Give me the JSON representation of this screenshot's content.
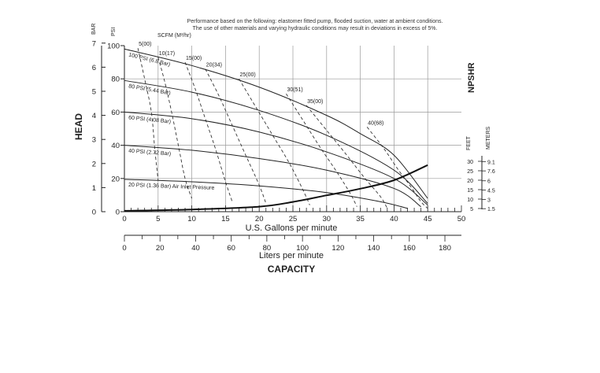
{
  "chart_data": {
    "type": "line",
    "note_lines": [
      "Performance based on the following: elastomer fitted pump, flooded suction, water at ambient conditions.",
      "The use of other materials and varying hydraulic conditions may result in deviations in excess of 5%."
    ],
    "xlabel": "U.S. Gallons per minute",
    "x2label": "Liters per minute",
    "capacity_label": "CAPACITY",
    "head_label": "HEAD",
    "npshr_label": "NPSHR",
    "bar_label": "BAR",
    "psi_label": "PSI",
    "feet_label": "FEET",
    "meters_label": "METERS",
    "scfm_label": "SCFM (M³/hr)",
    "xlim": [
      0,
      50
    ],
    "ylim_psi": [
      0,
      100
    ],
    "x_ticks": [
      "0",
      "5",
      "10",
      "15",
      "20",
      "25",
      "30",
      "35",
      "40",
      "45",
      "50"
    ],
    "x2_ticks": [
      {
        "gpm": 0,
        "label": "0"
      },
      {
        "gpm": 5.28,
        "label": "20"
      },
      {
        "gpm": 10.57,
        "label": "40"
      },
      {
        "gpm": 15.85,
        "label": "60"
      },
      {
        "gpm": 21.13,
        "label": "80"
      },
      {
        "gpm": 26.42,
        "label": "100"
      },
      {
        "gpm": 31.7,
        "label": "120"
      },
      {
        "gpm": 36.98,
        "label": "140"
      },
      {
        "gpm": 42.27,
        "label": "160"
      },
      {
        "gpm": 47.55,
        "label": "180"
      }
    ],
    "psi_ticks": [
      {
        "psi": 0,
        "label": "0"
      },
      {
        "psi": 20,
        "label": "20"
      },
      {
        "psi": 40,
        "label": "40"
      },
      {
        "psi": 60,
        "label": "60"
      },
      {
        "psi": 80,
        "label": "80"
      },
      {
        "psi": 100,
        "label": "100"
      }
    ],
    "bar_ticks": [
      {
        "bar": 0,
        "label": "0"
      },
      {
        "bar": 1,
        "label": "1"
      },
      {
        "bar": 2,
        "label": "2"
      },
      {
        "bar": 3,
        "label": "3"
      },
      {
        "bar": 4,
        "label": "4"
      },
      {
        "bar": 5,
        "label": "5"
      },
      {
        "bar": 6,
        "label": "6"
      },
      {
        "bar": 7,
        "label": "7"
      }
    ],
    "feet_ticks": [
      {
        "ft": 5,
        "label": "5"
      },
      {
        "ft": 10,
        "label": "10"
      },
      {
        "ft": 15,
        "label": "15"
      },
      {
        "ft": 20,
        "label": "20"
      },
      {
        "ft": 25,
        "label": "25"
      },
      {
        "ft": 30,
        "label": "30"
      }
    ],
    "meter_ticks": [
      {
        "ft": 4.92,
        "label": "1.5"
      },
      {
        "ft": 9.84,
        "label": "3"
      },
      {
        "ft": 14.76,
        "label": "4.5"
      },
      {
        "ft": 19.69,
        "label": "6"
      },
      {
        "ft": 24.93,
        "label": "7.6"
      },
      {
        "ft": 29.86,
        "label": "9.1"
      }
    ],
    "pressure_curves": [
      {
        "label": "100 PSI (6.8 Bar)",
        "points": [
          [
            0,
            98
          ],
          [
            10,
            88
          ],
          [
            20,
            75
          ],
          [
            30,
            58
          ],
          [
            35,
            47
          ],
          [
            40,
            34
          ],
          [
            45,
            8
          ]
        ]
      },
      {
        "label": "80 PSI (5.44 Bar)",
        "points": [
          [
            0,
            79
          ],
          [
            10,
            72
          ],
          [
            20,
            61
          ],
          [
            30,
            46
          ],
          [
            40,
            25
          ],
          [
            45,
            5
          ]
        ]
      },
      {
        "label": "60 PSI (4.08 Bar)",
        "points": [
          [
            0,
            60
          ],
          [
            10,
            56
          ],
          [
            20,
            48
          ],
          [
            30,
            36
          ],
          [
            40,
            20
          ],
          [
            45,
            4
          ]
        ]
      },
      {
        "label": "40 PSI (2.72 Bar)",
        "points": [
          [
            0,
            40
          ],
          [
            10,
            37
          ],
          [
            20,
            32
          ],
          [
            30,
            25
          ],
          [
            40,
            14
          ],
          [
            44,
            3
          ]
        ]
      },
      {
        "label": "20 PSI (1.36 Bar) Air Inlet Pressure",
        "points": [
          [
            0,
            19.5
          ],
          [
            10,
            18
          ],
          [
            20,
            15.5
          ],
          [
            30,
            11.5
          ],
          [
            38,
            6
          ],
          [
            42,
            2
          ]
        ]
      }
    ],
    "scfm_curves": [
      {
        "label": "5(00)",
        "points": [
          [
            2,
            98.5
          ],
          [
            3,
            80
          ],
          [
            4,
            60
          ],
          [
            4.5,
            38
          ],
          [
            5,
            19
          ]
        ]
      },
      {
        "label": "10(17)",
        "points": [
          [
            5,
            93
          ],
          [
            6,
            78
          ],
          [
            7,
            60
          ],
          [
            8,
            40
          ],
          [
            9,
            20
          ],
          [
            10,
            8
          ]
        ]
      },
      {
        "label": "15(00)",
        "points": [
          [
            9,
            90
          ],
          [
            10.5,
            74
          ],
          [
            12,
            56
          ],
          [
            13.5,
            38
          ],
          [
            15,
            18
          ],
          [
            16,
            6
          ]
        ]
      },
      {
        "label": "20(34)",
        "points": [
          [
            12,
            86
          ],
          [
            14,
            70
          ],
          [
            16,
            52
          ],
          [
            18,
            34
          ],
          [
            20,
            16
          ],
          [
            21,
            5
          ]
        ]
      },
      {
        "label": "25(00)",
        "points": [
          [
            17,
            80
          ],
          [
            19.5,
            63
          ],
          [
            22,
            46
          ],
          [
            24.5,
            29
          ],
          [
            26.5,
            13
          ],
          [
            27.5,
            4
          ]
        ]
      },
      {
        "label": "30(51)",
        "points": [
          [
            24,
            71
          ],
          [
            26.5,
            55
          ],
          [
            29,
            39
          ],
          [
            31.5,
            24
          ],
          [
            33.5,
            11
          ],
          [
            34.5,
            3
          ]
        ]
      },
      {
        "label": "35(00)",
        "points": [
          [
            27,
            64
          ],
          [
            30,
            49
          ],
          [
            33,
            34
          ],
          [
            35.5,
            21
          ],
          [
            38,
            9
          ],
          [
            39,
            2
          ]
        ]
      },
      {
        "label": "40(68)",
        "points": [
          [
            36,
            51
          ],
          [
            38.5,
            38
          ],
          [
            40.5,
            26
          ],
          [
            42.5,
            15
          ],
          [
            44,
            6
          ],
          [
            45,
            2
          ]
        ]
      }
    ],
    "npshr_curve": {
      "points_gpm_ft": [
        [
          0,
          3.8
        ],
        [
          10,
          4.5
        ],
        [
          20,
          6
        ],
        [
          25,
          8.5
        ],
        [
          30,
          12
        ],
        [
          35,
          15.5
        ],
        [
          40,
          20
        ],
        [
          45,
          28
        ]
      ]
    }
  }
}
